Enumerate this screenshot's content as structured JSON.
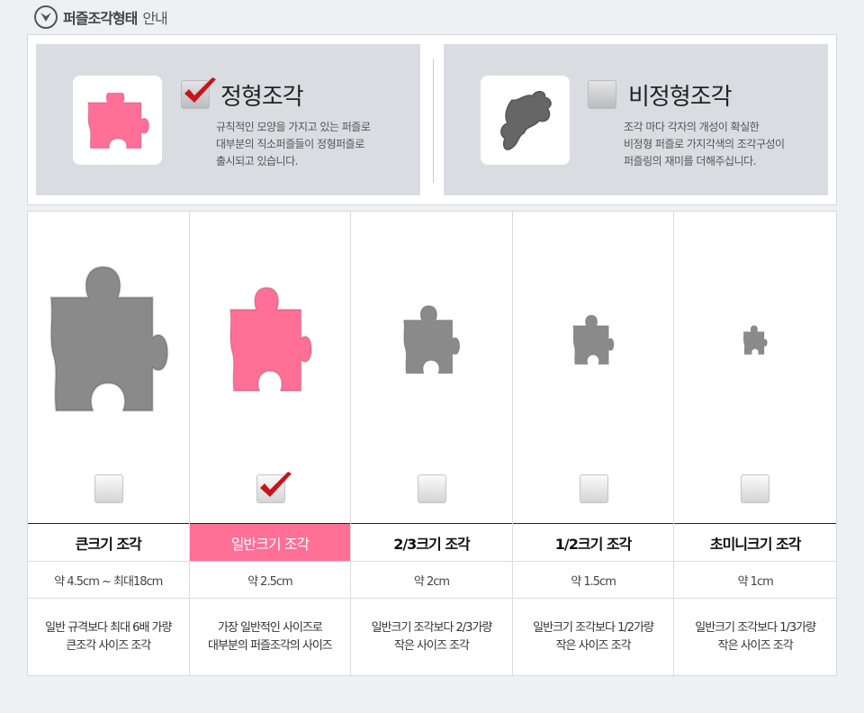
{
  "header": {
    "title_bold": "퍼즐조각형태",
    "title_rest": "안내",
    "icon": "chevron-down-circle-icon"
  },
  "types": [
    {
      "title": "정형조각",
      "checked": true,
      "color": "#ff6f96",
      "lines": [
        "규칙적인 모양을 가지고 있는 퍼즐로",
        "대부분의 직소퍼즐들이 정형퍼즐로",
        "출시되고 있습니다."
      ]
    },
    {
      "title": "비정형조각",
      "checked": false,
      "color": "#666666",
      "lines": [
        "조각 마다 각자의 개성이 확실한",
        "비정형 퍼즐로 가지각색의 조각구성이",
        "퍼즐링의 재미를 더해주십니다."
      ]
    }
  ],
  "sizes": [
    {
      "name": "큰크기 조각",
      "size": "약 4.5cm ~ 최대18cm",
      "desc": [
        "일반 규격보다 최대 6배 가량",
        "큰조각 사이즈 조각"
      ],
      "checked": false
    },
    {
      "name": "일반크기 조각",
      "size": "약 2.5cm",
      "desc": [
        "가장 일반적인 사이즈로",
        "대부분의 퍼즐조각의 사이즈"
      ],
      "checked": true
    },
    {
      "name": "2/3크기 조각",
      "size": "약 2cm",
      "desc": [
        "일반크기 조각보다 2/3가량",
        "작은 사이즈 조각"
      ],
      "checked": false
    },
    {
      "name": "1/2크기 조각",
      "size": "약 1.5cm",
      "desc": [
        "일반크기 조각보다 1/2가량",
        "작은 사이즈 조각"
      ],
      "checked": false
    },
    {
      "name": "초미니크기 조각",
      "size": "약 1cm",
      "desc": [
        "일반크기 조각보다 1/3가량",
        "작은 사이즈 조각"
      ],
      "checked": false
    }
  ],
  "colors": {
    "accent": "#ff6f96",
    "piece_gray": "#8a8a8a",
    "check_red": "#c8141e"
  }
}
